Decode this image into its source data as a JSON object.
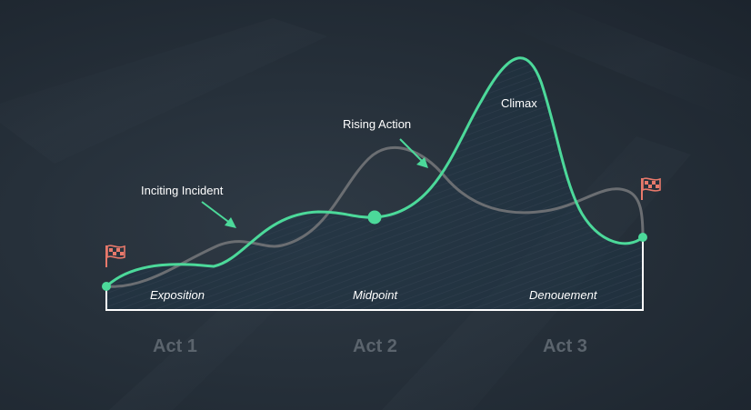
{
  "annotations": {
    "inciting_incident": "Inciting Incident",
    "rising_action": "Rising Action",
    "climax": "Climax"
  },
  "phases": {
    "exposition": "Exposition",
    "midpoint": "Midpoint",
    "denouement": "Denouement"
  },
  "acts": [
    "Act 1",
    "Act 2",
    "Act 3"
  ],
  "icons": {
    "start": "checkered-flag-icon",
    "end": "checkered-flag-icon"
  },
  "colors": {
    "story_curve": "#4cd99a",
    "alt_curve": "#6b6e72",
    "flag": "#e8796b",
    "baseline": "#ffffff",
    "act_label": "#5b646d"
  }
}
